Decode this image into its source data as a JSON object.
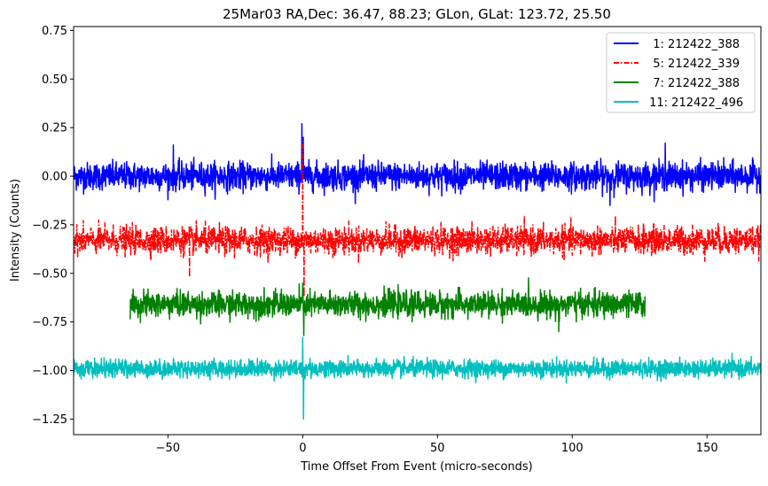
{
  "chart_data": {
    "type": "line",
    "title": "25Mar03 RA,Dec:   36.47,  88.23; GLon, GLat:  123.72,  25.50",
    "xlabel": "Time Offset From Event (micro-seconds)",
    "ylabel": "Intensity (Counts)",
    "xlim": [
      -85,
      170
    ],
    "ylim": [
      -1.33,
      0.77
    ],
    "xticks": [
      -50,
      0,
      50,
      100,
      150
    ],
    "xtick_labels": [
      "−50",
      "0",
      "50",
      "100",
      "150"
    ],
    "yticks": [
      0.75,
      0.5,
      0.25,
      0.0,
      -0.25,
      -0.5,
      -0.75,
      -1.0,
      -1.25
    ],
    "ytick_labels": [
      "0.75",
      "0.50",
      "0.25",
      "0.00",
      "−0.25",
      "−0.50",
      "−0.75",
      "−1.00",
      "−1.25"
    ],
    "grid": false,
    "legend_position": "top-right",
    "series": [
      {
        "name": "  1: 212422_388",
        "color": "#0000ff",
        "dash": "solid",
        "x_range": [
          -85,
          170
        ],
        "baseline": 0.0,
        "noise_sd": 0.035,
        "spikes": [
          {
            "x": -0.3,
            "value": 0.27
          },
          {
            "x": 0.2,
            "value": 0.2
          },
          {
            "x": -48,
            "value": 0.16
          },
          {
            "x": 134.5,
            "value": 0.17
          },
          {
            "x": 114,
            "value": -0.15
          }
        ]
      },
      {
        "name": "  5: 212422_339",
        "color": "#ff0000",
        "dash": "dashdot",
        "x_range": [
          -85,
          170
        ],
        "baseline": -0.33,
        "noise_sd": 0.035,
        "spikes": [
          {
            "x": 0,
            "value": 0.18
          },
          {
            "x": 0.5,
            "value": -0.62
          },
          {
            "x": -42,
            "value": -0.52
          }
        ]
      },
      {
        "name": "  7: 212422_388",
        "color": "#008000",
        "dash": "solid",
        "x_range": [
          -64,
          127
        ],
        "baseline": -0.66,
        "noise_sd": 0.032,
        "spikes": [
          {
            "x": 0,
            "value": -0.55
          },
          {
            "x": 0.4,
            "value": -0.82
          },
          {
            "x": 95,
            "value": -0.8
          }
        ]
      },
      {
        "name": " 11: 212422_496",
        "color": "#00bfbf",
        "dash": "solid",
        "x_range": [
          -85,
          170
        ],
        "baseline": -0.99,
        "noise_sd": 0.022,
        "spikes": [
          {
            "x": 0,
            "value": -0.83
          },
          {
            "x": 0.3,
            "value": -1.25
          }
        ]
      }
    ]
  }
}
